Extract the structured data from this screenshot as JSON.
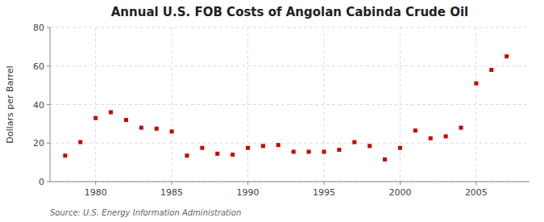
{
  "chart_data": {
    "type": "scatter",
    "title": "Annual U.S. FOB Costs of Angolan Cabinda Crude Oil",
    "ylabel": "Dollars per Barrel",
    "source": "Source: U.S. Energy Information Administration",
    "x": [
      1978,
      1979,
      1980,
      1981,
      1982,
      1983,
      1984,
      1985,
      1986,
      1987,
      1988,
      1989,
      1990,
      1991,
      1992,
      1993,
      1994,
      1995,
      1996,
      1997,
      1998,
      1999,
      2000,
      2001,
      2002,
      2003,
      2004,
      2005,
      2006,
      2007
    ],
    "values": [
      13.5,
      20.5,
      33.0,
      36.0,
      32.0,
      28.0,
      27.5,
      26.0,
      13.5,
      17.5,
      14.5,
      14.0,
      17.5,
      18.5,
      19.0,
      15.5,
      15.5,
      15.5,
      16.5,
      20.5,
      18.5,
      11.5,
      17.5,
      26.5,
      22.5,
      23.5,
      28.0,
      51.0,
      58.0,
      65.0
    ],
    "color": "#cc0000",
    "marker": "square",
    "xlim": [
      1977.0,
      2008.5
    ],
    "ylim": [
      0,
      80
    ],
    "xticks": [
      1980,
      1985,
      1990,
      1995,
      2000,
      2005
    ],
    "yticks": [
      0,
      20,
      40,
      60,
      80
    ],
    "grid": true
  }
}
